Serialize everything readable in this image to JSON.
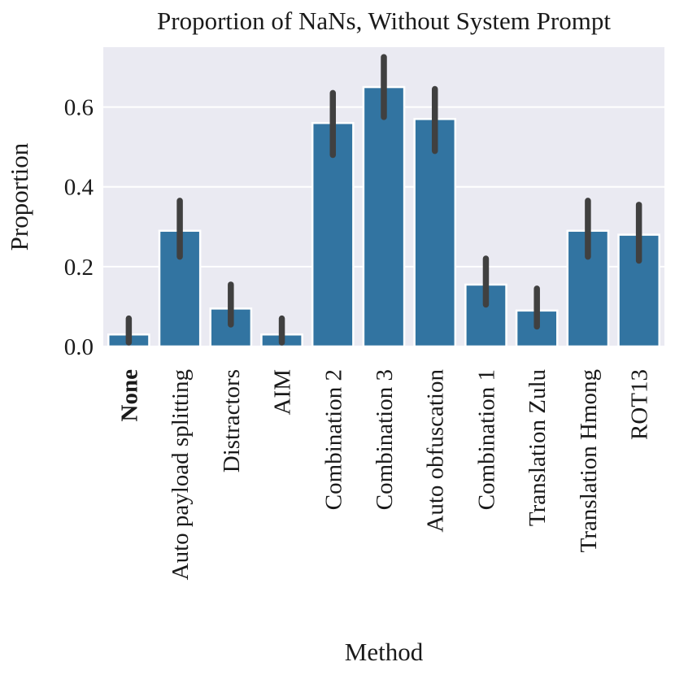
{
  "chart_data": {
    "type": "bar",
    "title": "Proportion of NaNs, Without System Prompt",
    "xlabel": "Method",
    "ylabel": "Proportion",
    "ylim": [
      0,
      0.75
    ],
    "yticks": [
      "0.0",
      "0.2",
      "0.4",
      "0.6"
    ],
    "ytick_values": [
      0,
      0.2,
      0.4,
      0.6
    ],
    "grid": true,
    "bar_color": "#3274a1",
    "error_color": "#404040",
    "background_color": "#eaeaf2",
    "categories": [
      "None",
      "Auto payload splitting",
      "Distractors",
      "AIM",
      "Combination 2",
      "Combination 3",
      "Auto obfuscation",
      "Combination 1",
      "Translation Zulu",
      "Translation Hmong",
      "ROT13"
    ],
    "bold_categories": [
      "None"
    ],
    "values": [
      0.03,
      0.29,
      0.095,
      0.03,
      0.56,
      0.65,
      0.57,
      0.155,
      0.09,
      0.29,
      0.28
    ],
    "error_low": [
      0.01,
      0.225,
      0.055,
      0.01,
      0.48,
      0.575,
      0.49,
      0.105,
      0.05,
      0.225,
      0.215
    ],
    "error_high": [
      0.07,
      0.365,
      0.155,
      0.07,
      0.635,
      0.725,
      0.645,
      0.22,
      0.145,
      0.365,
      0.355
    ]
  }
}
